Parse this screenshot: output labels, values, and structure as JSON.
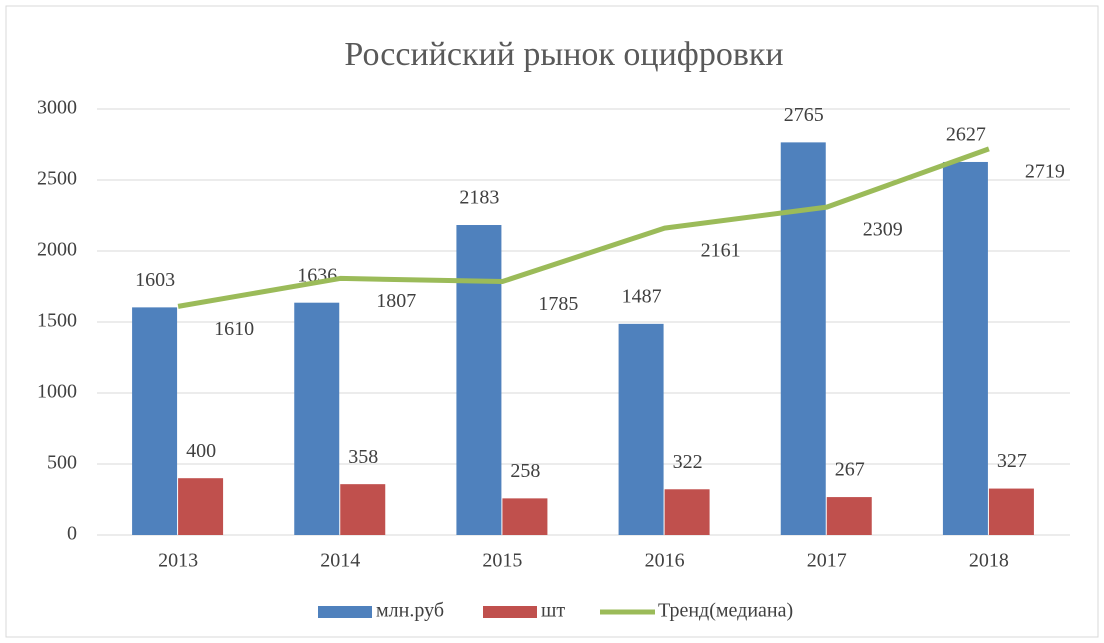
{
  "chart_data": {
    "type": "bar",
    "title": "Российский рынок оцифровки",
    "categories": [
      "2013",
      "2014",
      "2015",
      "2016",
      "2017",
      "2018"
    ],
    "series": [
      {
        "name": "млн.руб",
        "color": "#4f81bd",
        "type": "bar",
        "values": [
          1603,
          1636,
          2183,
          1487,
          2765,
          2627
        ]
      },
      {
        "name": "шт",
        "color": "#c0504d",
        "type": "bar",
        "values": [
          400,
          358,
          258,
          322,
          267,
          327
        ]
      },
      {
        "name": "Тренд(медиана)",
        "color": "#9bbb59",
        "type": "line",
        "values": [
          1610,
          1807,
          1785,
          2161,
          2309,
          2719
        ]
      }
    ],
    "ylim": [
      0,
      3000
    ],
    "yticks": [
      0,
      500,
      1000,
      1500,
      2000,
      2500,
      3000
    ],
    "grid": true,
    "legend": "bottom"
  }
}
